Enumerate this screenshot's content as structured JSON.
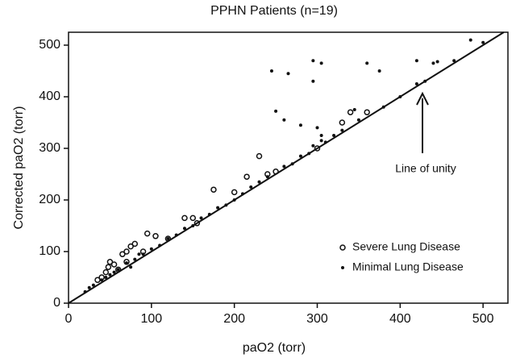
{
  "chart_data": {
    "type": "scatter",
    "title": "PPHN Patients (n=19)",
    "x_label": "paO2 (torr)",
    "y_label": "Corrected paO2 (torr)",
    "annotation": "Line of unity",
    "xlim": [
      0,
      530
    ],
    "ylim": [
      0,
      525
    ],
    "xticks": [
      0,
      100,
      200,
      300,
      400,
      500
    ],
    "yticks": [
      0,
      100,
      200,
      300,
      400,
      500
    ],
    "legend": "lower right",
    "series": [
      {
        "name": "Severe Lung Disease",
        "marker": "open",
        "color": "#111111",
        "x": [
          35,
          40,
          45,
          48,
          50,
          55,
          60,
          65,
          70,
          75,
          80,
          70,
          95,
          105,
          140,
          150,
          155,
          175,
          200,
          215,
          230,
          240,
          300,
          330,
          340,
          360,
          250,
          120,
          90
        ],
        "y": [
          45,
          50,
          60,
          70,
          80,
          75,
          65,
          95,
          100,
          110,
          115,
          80,
          135,
          130,
          165,
          165,
          155,
          220,
          215,
          245,
          285,
          250,
          300,
          350,
          370,
          370,
          255,
          125,
          100
        ]
      },
      {
        "name": "Minimal Lung Disease",
        "marker": "filled",
        "color": "#111111",
        "x": [
          245,
          265,
          295,
          295,
          305,
          360,
          375,
          420,
          440,
          445,
          465,
          485,
          500,
          250,
          260,
          280,
          295,
          300,
          305,
          305,
          345,
          420,
          430,
          400,
          380,
          350,
          320,
          280,
          260,
          240,
          220,
          200,
          180,
          160,
          140,
          120,
          100,
          90,
          80,
          70,
          60,
          50,
          40,
          30,
          25,
          20,
          110,
          130,
          150,
          170,
          190,
          210,
          230,
          270,
          290,
          310,
          330,
          85,
          75,
          55,
          45
        ],
        "y": [
          450,
          445,
          470,
          430,
          465,
          465,
          450,
          470,
          465,
          468,
          470,
          510,
          505,
          372,
          355,
          345,
          305,
          340,
          325,
          315,
          375,
          425,
          430,
          400,
          380,
          355,
          325,
          285,
          265,
          245,
          225,
          200,
          185,
          165,
          145,
          125,
          105,
          95,
          85,
          78,
          65,
          55,
          45,
          35,
          30,
          22,
          112,
          132,
          150,
          172,
          190,
          212,
          235,
          270,
          290,
          312,
          335,
          95,
          70,
          60,
          50
        ]
      }
    ]
  }
}
